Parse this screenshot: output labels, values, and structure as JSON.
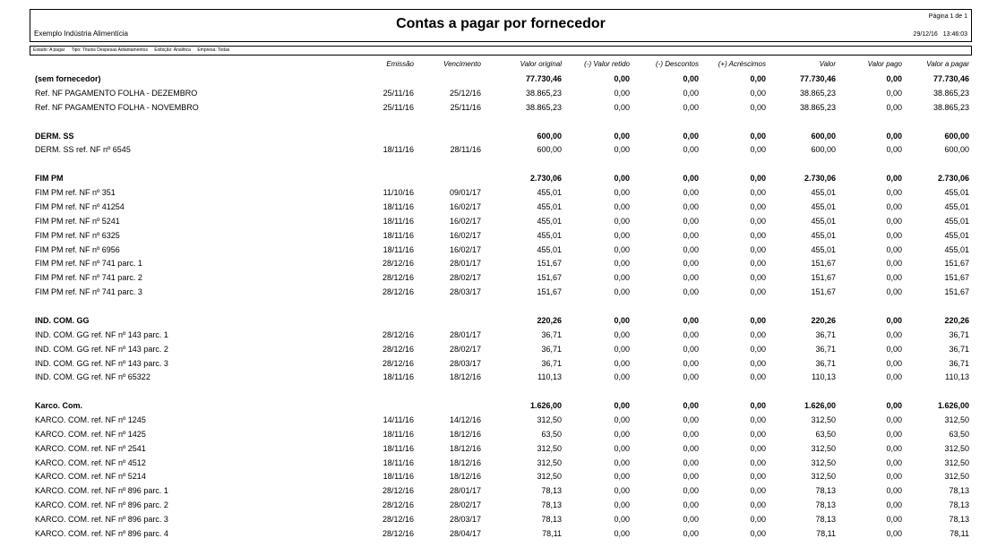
{
  "header": {
    "title": "Contas a pagar por fornecedor",
    "company": "Exemplo Indústria Alimentícia",
    "page_info": "Página 1 de 1",
    "date": "29/12/16",
    "time": "13:46:03"
  },
  "filters": [
    "Estado: A pagar",
    "Tipo: Títulos Despesas Adiantamentos",
    "Exibição: Analítica",
    "Empresa: Todas"
  ],
  "columns": [
    "Emissão",
    "Vencimento",
    "Valor original",
    "(-) Valor retido",
    "(-) Descontos",
    "(+) Acréscimos",
    "Valor",
    "Valor pago",
    "Valor a pagar"
  ],
  "groups": [
    {
      "name": "(sem fornecedor)",
      "totals": [
        "77.730,46",
        "0,00",
        "0,00",
        "0,00",
        "77.730,46",
        "0,00",
        "77.730,46"
      ],
      "rows": [
        {
          "desc": "Ref. NF PAGAMENTO FOLHA - DEZEMBRO",
          "emissao": "25/11/16",
          "vencimento": "25/12/16",
          "values": [
            "38.865,23",
            "0,00",
            "0,00",
            "0,00",
            "38.865,23",
            "0,00",
            "38.865,23"
          ]
        },
        {
          "desc": "Ref. NF PAGAMENTO FOLHA - NOVEMBRO",
          "emissao": "25/11/16",
          "vencimento": "25/11/16",
          "values": [
            "38.865,23",
            "0,00",
            "0,00",
            "0,00",
            "38.865,23",
            "0,00",
            "38.865,23"
          ]
        }
      ]
    },
    {
      "name": "DERM. SS",
      "totals": [
        "600,00",
        "0,00",
        "0,00",
        "0,00",
        "600,00",
        "0,00",
        "600,00"
      ],
      "rows": [
        {
          "desc": "DERM. SS ref. NF nº 6545",
          "emissao": "18/11/16",
          "vencimento": "28/11/16",
          "values": [
            "600,00",
            "0,00",
            "0,00",
            "0,00",
            "600,00",
            "0,00",
            "600,00"
          ]
        }
      ]
    },
    {
      "name": "FIM PM",
      "totals": [
        "2.730,06",
        "0,00",
        "0,00",
        "0,00",
        "2.730,06",
        "0,00",
        "2.730,06"
      ],
      "rows": [
        {
          "desc": "FIM PM ref. NF nº 351",
          "emissao": "11/10/16",
          "vencimento": "09/01/17",
          "values": [
            "455,01",
            "0,00",
            "0,00",
            "0,00",
            "455,01",
            "0,00",
            "455,01"
          ]
        },
        {
          "desc": "FIM PM ref. NF nº 41254",
          "emissao": "18/11/16",
          "vencimento": "16/02/17",
          "values": [
            "455,01",
            "0,00",
            "0,00",
            "0,00",
            "455,01",
            "0,00",
            "455,01"
          ]
        },
        {
          "desc": "FIM PM ref. NF nº 5241",
          "emissao": "18/11/16",
          "vencimento": "16/02/17",
          "values": [
            "455,01",
            "0,00",
            "0,00",
            "0,00",
            "455,01",
            "0,00",
            "455,01"
          ]
        },
        {
          "desc": "FIM PM ref. NF nº 6325",
          "emissao": "18/11/16",
          "vencimento": "16/02/17",
          "values": [
            "455,01",
            "0,00",
            "0,00",
            "0,00",
            "455,01",
            "0,00",
            "455,01"
          ]
        },
        {
          "desc": "FIM PM ref. NF nº 6956",
          "emissao": "18/11/16",
          "vencimento": "16/02/17",
          "values": [
            "455,01",
            "0,00",
            "0,00",
            "0,00",
            "455,01",
            "0,00",
            "455,01"
          ]
        },
        {
          "desc": "FIM PM ref. NF nº 741 parc. 1",
          "emissao": "28/12/16",
          "vencimento": "28/01/17",
          "values": [
            "151,67",
            "0,00",
            "0,00",
            "0,00",
            "151,67",
            "0,00",
            "151,67"
          ]
        },
        {
          "desc": "FIM PM ref. NF nº 741 parc. 2",
          "emissao": "28/12/16",
          "vencimento": "28/02/17",
          "values": [
            "151,67",
            "0,00",
            "0,00",
            "0,00",
            "151,67",
            "0,00",
            "151,67"
          ]
        },
        {
          "desc": "FIM PM ref. NF nº 741 parc. 3",
          "emissao": "28/12/16",
          "vencimento": "28/03/17",
          "values": [
            "151,67",
            "0,00",
            "0,00",
            "0,00",
            "151,67",
            "0,00",
            "151,67"
          ]
        }
      ]
    },
    {
      "name": "IND. COM. GG",
      "totals": [
        "220,26",
        "0,00",
        "0,00",
        "0,00",
        "220,26",
        "0,00",
        "220,26"
      ],
      "rows": [
        {
          "desc": "IND. COM. GG ref. NF nº 143 parc. 1",
          "emissao": "28/12/16",
          "vencimento": "28/01/17",
          "values": [
            "36,71",
            "0,00",
            "0,00",
            "0,00",
            "36,71",
            "0,00",
            "36,71"
          ]
        },
        {
          "desc": "IND. COM. GG ref. NF nº 143 parc. 2",
          "emissao": "28/12/16",
          "vencimento": "28/02/17",
          "values": [
            "36,71",
            "0,00",
            "0,00",
            "0,00",
            "36,71",
            "0,00",
            "36,71"
          ]
        },
        {
          "desc": "IND. COM. GG ref. NF nº 143 parc. 3",
          "emissao": "28/12/16",
          "vencimento": "28/03/17",
          "values": [
            "36,71",
            "0,00",
            "0,00",
            "0,00",
            "36,71",
            "0,00",
            "36,71"
          ]
        },
        {
          "desc": "IND. COM. GG ref. NF nº 65322",
          "emissao": "18/11/16",
          "vencimento": "18/12/16",
          "values": [
            "110,13",
            "0,00",
            "0,00",
            "0,00",
            "110,13",
            "0,00",
            "110,13"
          ]
        }
      ]
    },
    {
      "name": "Karco. Com.",
      "totals": [
        "1.626,00",
        "0,00",
        "0,00",
        "0,00",
        "1.626,00",
        "0,00",
        "1.626,00"
      ],
      "rows": [
        {
          "desc": "KARCO. COM. ref. NF nº 1245",
          "emissao": "14/11/16",
          "vencimento": "14/12/16",
          "values": [
            "312,50",
            "0,00",
            "0,00",
            "0,00",
            "312,50",
            "0,00",
            "312,50"
          ]
        },
        {
          "desc": "KARCO. COM. ref. NF nº 1425",
          "emissao": "18/11/16",
          "vencimento": "18/12/16",
          "values": [
            "63,50",
            "0,00",
            "0,00",
            "0,00",
            "63,50",
            "0,00",
            "63,50"
          ]
        },
        {
          "desc": "KARCO. COM. ref. NF nº 2541",
          "emissao": "18/11/16",
          "vencimento": "18/12/16",
          "values": [
            "312,50",
            "0,00",
            "0,00",
            "0,00",
            "312,50",
            "0,00",
            "312,50"
          ]
        },
        {
          "desc": "KARCO. COM. ref. NF nº 4512",
          "emissao": "18/11/16",
          "vencimento": "18/12/16",
          "values": [
            "312,50",
            "0,00",
            "0,00",
            "0,00",
            "312,50",
            "0,00",
            "312,50"
          ]
        },
        {
          "desc": "KARCO. COM. ref. NF nº 5214",
          "emissao": "18/11/16",
          "vencimento": "18/12/16",
          "values": [
            "312,50",
            "0,00",
            "0,00",
            "0,00",
            "312,50",
            "0,00",
            "312,50"
          ]
        },
        {
          "desc": "KARCO. COM. ref. NF nº 896 parc. 1",
          "emissao": "28/12/16",
          "vencimento": "28/01/17",
          "values": [
            "78,13",
            "0,00",
            "0,00",
            "0,00",
            "78,13",
            "0,00",
            "78,13"
          ]
        },
        {
          "desc": "KARCO. COM. ref. NF nº 896 parc. 2",
          "emissao": "28/12/16",
          "vencimento": "28/02/17",
          "values": [
            "78,13",
            "0,00",
            "0,00",
            "0,00",
            "78,13",
            "0,00",
            "78,13"
          ]
        },
        {
          "desc": "KARCO. COM. ref. NF nº 896 parc. 3",
          "emissao": "28/12/16",
          "vencimento": "28/03/17",
          "values": [
            "78,13",
            "0,00",
            "0,00",
            "0,00",
            "78,13",
            "0,00",
            "78,13"
          ]
        },
        {
          "desc": "KARCO. COM. ref. NF nº 896 parc. 4",
          "emissao": "28/12/16",
          "vencimento": "28/04/17",
          "values": [
            "78,11",
            "0,00",
            "0,00",
            "0,00",
            "78,11",
            "0,00",
            "78,11"
          ]
        }
      ]
    }
  ]
}
